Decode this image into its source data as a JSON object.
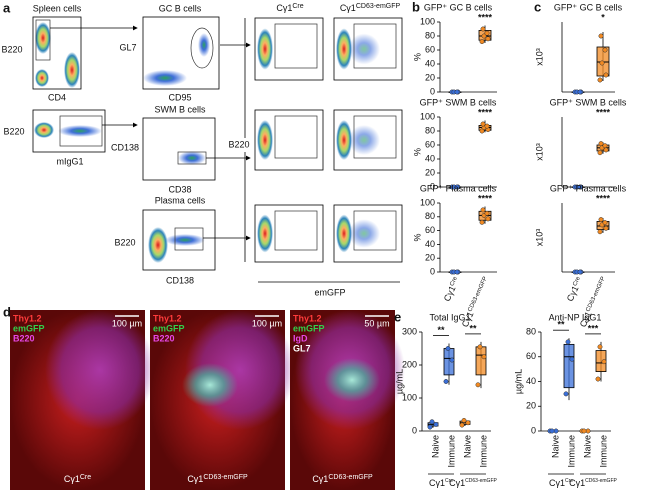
{
  "panel_a": {
    "letter": "a",
    "spleen": "Spleen cells",
    "b220_1": "B220",
    "cd4": "CD4",
    "b220_2": "B220",
    "migg1": "mIgG1",
    "gc": "GC B cells",
    "gl7": "GL7",
    "cd95": "CD95",
    "swm": "SWM B cells",
    "cd138_y": "CD138",
    "cd38": "CD38",
    "plasma": "Plasma cells",
    "b220_3": "B220",
    "cd138_x": "CD138",
    "cre": {
      "base": "Cγ1",
      "sup": "Cre"
    },
    "emgfp_mouse": {
      "base": "Cγ1",
      "sup": "CD63-emGFP"
    },
    "b220_4": "B220",
    "emgfp": "emGFP"
  },
  "chart_data": [
    {
      "type": "box",
      "letter": "b",
      "title": "GFP⁺ GC B cells",
      "ylabel": "%",
      "ylim": [
        0,
        100
      ],
      "yticks": [
        0,
        20,
        40,
        60,
        80,
        100
      ],
      "significance": "****",
      "groups": [
        {
          "color": "#3a6fd8",
          "box": [
            0,
            0,
            0,
            0,
            0
          ],
          "points": [
            0,
            0,
            0,
            0
          ]
        },
        {
          "color": "#f28a22",
          "box": [
            70,
            74,
            80,
            88,
            95
          ],
          "points": [
            72,
            76,
            80,
            84,
            90
          ]
        }
      ]
    },
    {
      "type": "box",
      "title": "GFP⁺ SWM B cells",
      "ylabel": "%",
      "ylim": [
        0,
        100
      ],
      "yticks": [
        0,
        20,
        40,
        60,
        80,
        100
      ],
      "significance": "****",
      "groups": [
        {
          "color": "#3a6fd8",
          "box": [
            0,
            0,
            0,
            0,
            0
          ],
          "points": [
            0,
            0,
            0,
            0
          ]
        },
        {
          "color": "#f28a22",
          "box": [
            78,
            81,
            85,
            88,
            95
          ],
          "points": [
            80,
            82,
            85,
            87,
            90
          ]
        }
      ]
    },
    {
      "type": "box",
      "title": "GFP⁺ Plasma cells",
      "ylabel": "%",
      "ylim": [
        0,
        100
      ],
      "yticks": [
        0,
        20,
        40,
        60,
        80,
        100
      ],
      "significance": "****",
      "groups": [
        {
          "color": "#3a6fd8",
          "box": [
            0,
            0,
            0,
            0,
            0
          ],
          "points": [
            0,
            0,
            0,
            0
          ]
        },
        {
          "color": "#f28a22",
          "box": [
            70,
            75,
            82,
            88,
            95
          ],
          "points": [
            72,
            77,
            82,
            85,
            90
          ]
        }
      ],
      "categories": [
        {
          "base": "Cγ1",
          "sup": "Cre"
        },
        {
          "base": "Cγ1",
          "sup": "CD63-emGFP"
        }
      ]
    },
    {
      "type": "box",
      "letter": "c",
      "title": "GFP⁺ GC B cells",
      "ylabel": "x10³",
      "ylim": [
        0,
        700
      ],
      "significance": "*",
      "groups": [
        {
          "color": "#3a6fd8",
          "box": [
            0,
            0,
            0,
            0,
            0
          ],
          "points": [
            0,
            0,
            0,
            0
          ]
        },
        {
          "color": "#f28a22",
          "box": [
            110,
            160,
            300,
            450,
            600
          ],
          "points": [
            120,
            170,
            290,
            420,
            560
          ]
        }
      ]
    },
    {
      "type": "box",
      "title": "GFP⁺ SWM B cells",
      "ylabel": "x10³",
      "ylim": [
        0,
        200
      ],
      "significance": "****",
      "groups": [
        {
          "color": "#3a6fd8",
          "box": [
            0,
            0,
            0,
            0,
            0
          ],
          "points": [
            0,
            0,
            0,
            0
          ]
        },
        {
          "color": "#f28a22",
          "box": [
            95,
            103,
            112,
            120,
            128
          ],
          "points": [
            98,
            106,
            112,
            118,
            124
          ]
        }
      ]
    },
    {
      "type": "box",
      "title": "GFP⁺ Plasma cells",
      "ylabel": "x10³",
      "ylim": [
        0,
        300
      ],
      "significance": "****",
      "groups": [
        {
          "color": "#3a6fd8",
          "box": [
            0,
            0,
            0,
            0,
            0
          ],
          "points": [
            0,
            0,
            0,
            0
          ]
        },
        {
          "color": "#f28a22",
          "box": [
            170,
            185,
            200,
            220,
            235
          ],
          "points": [
            175,
            190,
            205,
            215,
            228
          ]
        }
      ],
      "categories": [
        {
          "base": "Cγ1",
          "sup": "Cre"
        },
        {
          "base": "Cγ1",
          "sup": "CD63-emGFP"
        }
      ]
    },
    {
      "type": "box",
      "letter": "e",
      "title": "Total IgG1",
      "ylabel": "µg/mL",
      "ylim": [
        0,
        300
      ],
      "yticks": [
        0,
        100,
        200,
        300
      ],
      "significance": [
        "**",
        "**"
      ],
      "groups": [
        {
          "color": "#3a6fd8",
          "box": [
            10,
            15,
            20,
            25,
            30
          ],
          "points": [
            12,
            20,
            28
          ]
        },
        {
          "color": "#3a6fd8",
          "box": [
            140,
            170,
            220,
            250,
            265
          ],
          "points": [
            150,
            215,
            250
          ]
        },
        {
          "color": "#f28a22",
          "box": [
            15,
            20,
            25,
            30,
            35
          ],
          "points": [
            18,
            25,
            32
          ]
        },
        {
          "color": "#f28a22",
          "box": [
            130,
            170,
            230,
            255,
            270
          ],
          "points": [
            140,
            225,
            255
          ]
        }
      ],
      "categories": [
        "Naive",
        "Immune",
        "Naive",
        "Immune"
      ],
      "genotypes": [
        {
          "base": "Cγ1",
          "sup": "Cre"
        },
        {
          "base": "Cγ1",
          "sup": "CD63-emGFP"
        }
      ]
    },
    {
      "type": "box",
      "title": "Anti-NP IgG1",
      "ylabel": "µg/mL",
      "ylim": [
        0,
        80
      ],
      "yticks": [
        0,
        20,
        40,
        60,
        80
      ],
      "significance": [
        "**",
        "***"
      ],
      "groups": [
        {
          "color": "#3a6fd8",
          "box": [
            0,
            0,
            0,
            0,
            0
          ],
          "points": [
            0,
            0,
            0
          ]
        },
        {
          "color": "#3a6fd8",
          "box": [
            25,
            35,
            60,
            70,
            75
          ],
          "points": [
            30,
            58,
            72
          ]
        },
        {
          "color": "#f28a22",
          "box": [
            0,
            0,
            0,
            0,
            0
          ],
          "points": [
            0,
            0,
            0
          ]
        },
        {
          "color": "#f28a22",
          "box": [
            40,
            48,
            55,
            65,
            72
          ],
          "points": [
            42,
            56,
            68
          ]
        }
      ],
      "categories": [
        "Naive",
        "Immune",
        "Naive",
        "Immune"
      ],
      "genotypes": [
        {
          "base": "Cγ1",
          "sup": "Cre"
        },
        {
          "base": "Cγ1",
          "sup": "CD63-emGFP"
        }
      ]
    }
  ],
  "panel_d": {
    "letter": "d",
    "images": [
      {
        "stains": [
          {
            "text": "Thy1.2",
            "color": "#ff3b3b"
          },
          {
            "text": "emGFP",
            "color": "#33d04a"
          },
          {
            "text": "B220",
            "color": "#e848e8"
          }
        ],
        "scale": "100 µm",
        "genotype": {
          "base": "Cγ1",
          "sup": "Cre"
        }
      },
      {
        "stains": [
          {
            "text": "Thy1.2",
            "color": "#ff3b3b"
          },
          {
            "text": "emGFP",
            "color": "#33d04a"
          },
          {
            "text": "B220",
            "color": "#e848e8"
          }
        ],
        "scale": "100 µm",
        "genotype": {
          "base": "Cγ1",
          "sup": "CD63-emGFP"
        }
      },
      {
        "stains": [
          {
            "text": "Thy1.2",
            "color": "#ff3b3b"
          },
          {
            "text": "emGFP",
            "color": "#33d04a"
          },
          {
            "text": "IgD",
            "color": "#e848e8"
          },
          {
            "text": "GL7",
            "color": "#ffffff"
          }
        ],
        "scale": "50 µm",
        "genotype": {
          "base": "Cγ1",
          "sup": "CD63-emGFP"
        }
      }
    ]
  }
}
